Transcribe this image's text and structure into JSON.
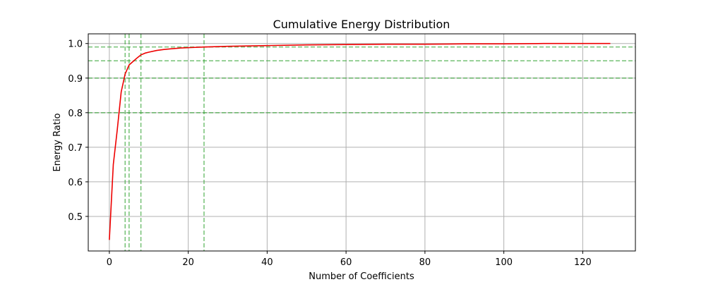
{
  "chart_data": {
    "type": "line",
    "title": "Cumulative Energy Distribution",
    "xlabel": "Number of Coefficients",
    "ylabel": "Energy Ratio",
    "xlim": [
      -5.35,
      133.35
    ],
    "ylim": [
      0.4,
      1.028
    ],
    "x_ticks": [
      0,
      20,
      40,
      60,
      80,
      100,
      120
    ],
    "y_ticks": [
      0.5,
      0.6,
      0.7,
      0.8,
      0.9,
      1.0
    ],
    "grid": true,
    "series": [
      {
        "color": "#ee0000",
        "x": [
          0,
          1,
          2,
          3,
          4,
          5,
          6,
          7,
          8,
          9,
          10,
          12,
          14,
          16,
          18,
          20,
          24,
          30,
          40,
          50,
          60,
          70,
          80,
          90,
          100,
          110,
          120,
          127
        ],
        "y": [
          0.432,
          0.65,
          0.75,
          0.86,
          0.912,
          0.938,
          0.948,
          0.958,
          0.967,
          0.972,
          0.975,
          0.98,
          0.983,
          0.985,
          0.987,
          0.988,
          0.99,
          0.992,
          0.994,
          0.996,
          0.997,
          0.998,
          0.998,
          0.999,
          0.999,
          1.0,
          1.0,
          1.0
        ]
      }
    ],
    "threshold_lines": {
      "color": "#2ca02c",
      "horizontal": [
        0.8,
        0.9,
        0.95,
        0.99
      ],
      "vertical": [
        4,
        5,
        8,
        24
      ]
    }
  }
}
